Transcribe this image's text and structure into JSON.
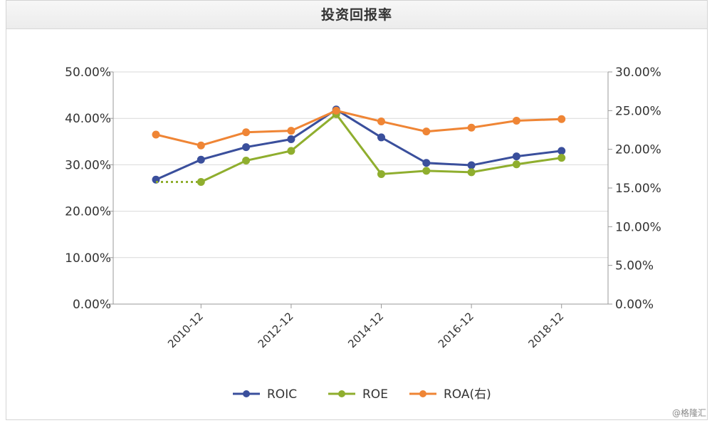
{
  "chart_data": {
    "type": "line",
    "title": "投资回报率",
    "x": [
      "2009-12",
      "2010-12",
      "2011-12",
      "2012-12",
      "2013-12",
      "2014-12",
      "2015-12",
      "2016-12",
      "2017-12",
      "2018-12"
    ],
    "x_tick_labels": [
      "2010-12",
      "2012-12",
      "2014-12",
      "2016-12",
      "2018-12"
    ],
    "y_left": {
      "range": [
        0,
        50
      ],
      "ticks": [
        "0.00%",
        "10.00%",
        "20.00%",
        "30.00%",
        "40.00%",
        "50.00%"
      ]
    },
    "y_right": {
      "range": [
        0,
        30
      ],
      "ticks": [
        "0.00%",
        "5.00%",
        "10.00%",
        "15.00%",
        "20.00%",
        "25.00%",
        "30.00%"
      ]
    },
    "grid": true,
    "legend_position": "bottom",
    "series": [
      {
        "name": "ROIC",
        "axis": "left",
        "color": "#3a4f9c",
        "values": [
          26.8,
          31.1,
          33.8,
          35.5,
          41.9,
          35.9,
          30.4,
          29.9,
          31.8,
          33.0
        ]
      },
      {
        "name": "ROE",
        "axis": "left",
        "color": "#8fae2e",
        "values": [
          26.8,
          26.3,
          30.9,
          33.0,
          40.9,
          28.0,
          28.7,
          28.4,
          30.1,
          31.5
        ],
        "dashed_first_segment": true
      },
      {
        "name": "ROA(右)",
        "axis": "right",
        "color": "#ef8535",
        "values": [
          21.9,
          20.5,
          22.2,
          22.4,
          25.0,
          23.6,
          22.3,
          22.8,
          23.7,
          23.9
        ]
      }
    ]
  },
  "watermark": "@格隆汇"
}
